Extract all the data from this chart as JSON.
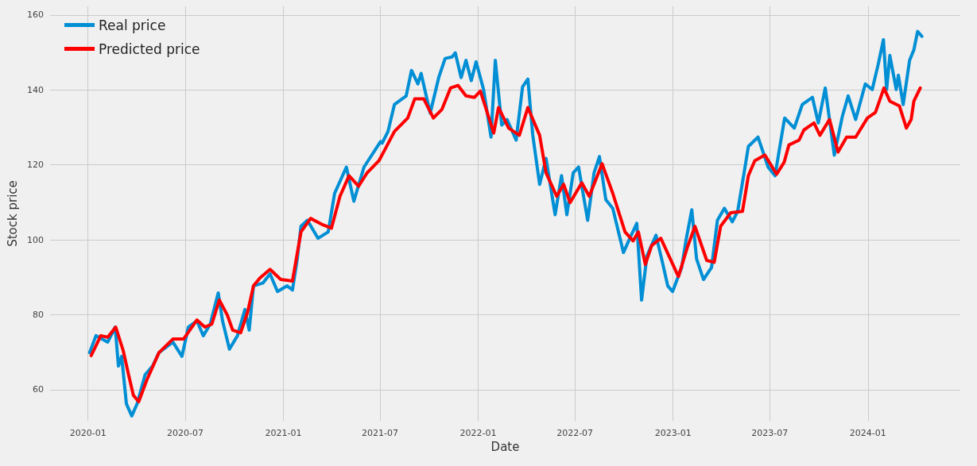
{
  "chart_data": {
    "type": "line",
    "xlabel": "Date",
    "ylabel": "Stock price",
    "xlim": [
      "2019-10-22",
      "2024-06-22"
    ],
    "ylim": [
      51.7,
      162.3
    ],
    "xticks": [
      "2020-01",
      "2020-07",
      "2021-01",
      "2021-07",
      "2022-01",
      "2022-07",
      "2023-01",
      "2023-07",
      "2024-01"
    ],
    "yticks": [
      60,
      80,
      100,
      120,
      140,
      160
    ],
    "grid": true,
    "legend": "top left",
    "marker": "none",
    "series": [
      {
        "name": "Real price",
        "color": "#008fd5",
        "x": [
          "2020-01-04",
          "2020-01-16",
          "2020-02-07",
          "2020-02-21",
          "2020-02-27",
          "2020-03-04",
          "2020-03-13",
          "2020-03-23",
          "2020-04-02",
          "2020-04-17",
          "2020-05-01",
          "2020-05-13",
          "2020-06-08",
          "2020-06-25",
          "2020-07-07",
          "2020-07-23",
          "2020-08-04",
          "2020-08-17",
          "2020-09-01",
          "2020-09-09",
          "2020-09-22",
          "2020-10-07",
          "2020-10-21",
          "2020-10-29",
          "2020-11-06",
          "2020-11-24",
          "2020-12-07",
          "2020-12-21",
          "2021-01-08",
          "2021-01-18",
          "2021-01-27",
          "2021-02-03",
          "2021-02-15",
          "2021-03-07",
          "2021-03-26",
          "2021-04-07",
          "2021-04-29",
          "2021-05-13",
          "2021-06-01",
          "2021-07-02",
          "2021-07-05",
          "2021-07-16",
          "2021-07-28",
          "2021-08-19",
          "2021-08-29",
          "2021-09-10",
          "2021-09-16",
          "2021-10-03",
          "2021-10-19",
          "2021-10-31",
          "2021-11-13",
          "2021-11-19",
          "2021-11-30",
          "2021-12-09",
          "2021-12-19",
          "2021-12-28",
          "2022-01-11",
          "2022-01-25",
          "2022-02-02",
          "2022-02-14",
          "2022-02-24",
          "2022-03-13",
          "2022-03-25",
          "2022-04-04",
          "2022-04-13",
          "2022-04-26",
          "2022-05-08",
          "2022-05-25",
          "2022-06-06",
          "2022-06-16",
          "2022-06-28",
          "2022-07-08",
          "2022-07-25",
          "2022-08-06",
          "2022-08-16",
          "2022-08-28",
          "2022-09-10",
          "2022-09-30",
          "2022-10-12",
          "2022-10-25",
          "2022-11-03",
          "2022-11-13",
          "2022-11-30",
          "2022-12-12",
          "2022-12-22",
          "2022-12-31",
          "2023-01-17",
          "2023-01-25",
          "2023-02-05",
          "2023-02-14",
          "2023-02-27",
          "2023-03-14",
          "2023-03-25",
          "2023-04-07",
          "2023-04-22",
          "2023-05-02",
          "2023-05-14",
          "2023-05-22",
          "2023-06-09",
          "2023-06-28",
          "2023-07-11",
          "2023-07-20",
          "2023-07-29",
          "2023-08-16",
          "2023-08-31",
          "2023-09-19",
          "2023-09-30",
          "2023-10-13",
          "2023-10-30",
          "2023-11-14",
          "2023-11-25",
          "2023-12-09",
          "2023-12-27",
          "2024-01-09",
          "2024-01-20",
          "2024-01-30",
          "2024-02-05",
          "2024-02-11",
          "2024-02-23",
          "2024-02-27",
          "2024-03-07",
          "2024-03-19",
          "2024-03-27",
          "2024-04-03",
          "2024-04-11"
        ],
        "values": [
          69.9,
          74.4,
          72.7,
          76.7,
          66.3,
          68.9,
          56.2,
          53.0,
          56.2,
          64.0,
          66.3,
          69.9,
          72.7,
          68.9,
          76.7,
          78.4,
          74.4,
          77.5,
          85.8,
          78.4,
          70.8,
          74.4,
          81.4,
          75.9,
          87.7,
          88.5,
          90.9,
          86.2,
          87.7,
          86.6,
          94.9,
          103.6,
          105.2,
          100.4,
          102.1,
          112.4,
          119.4,
          110.3,
          119.4,
          126.2,
          125.8,
          128.9,
          136.1,
          138.4,
          145.2,
          141.6,
          144.4,
          133.8,
          143.3,
          148.4,
          148.8,
          149.9,
          143.3,
          147.9,
          142.5,
          147.5,
          140.1,
          127.4,
          147.9,
          130.6,
          132.1,
          126.6,
          140.8,
          142.9,
          128.1,
          114.8,
          121.7,
          106.7,
          117.1,
          106.7,
          117.9,
          119.4,
          105.2,
          117.9,
          122.2,
          110.7,
          108.4,
          96.6,
          100.4,
          104.4,
          83.9,
          95.7,
          101.2,
          94.0,
          87.7,
          86.2,
          92.6,
          99.7,
          108.0,
          94.9,
          89.4,
          92.6,
          105.2,
          108.4,
          104.8,
          107.6,
          117.9,
          124.9,
          127.4,
          119.4,
          117.1,
          124.9,
          132.5,
          129.8,
          136.1,
          138.0,
          131.2,
          140.5,
          122.6,
          132.9,
          138.4,
          132.1,
          141.6,
          140.1,
          146.7,
          153.4,
          140.1,
          149.2,
          140.1,
          143.9,
          136.1,
          147.9,
          150.7,
          155.6,
          154.3
        ]
      },
      {
        "name": "Predicted price",
        "color": "#ff0000",
        "x": [
          "2020-01-07",
          "2020-01-25",
          "2020-02-07",
          "2020-02-22",
          "2020-03-07",
          "2020-03-17",
          "2020-03-26",
          "2020-04-05",
          "2020-04-20",
          "2020-05-13",
          "2020-06-08",
          "2020-06-28",
          "2020-07-23",
          "2020-08-07",
          "2020-08-20",
          "2020-09-03",
          "2020-09-18",
          "2020-09-28",
          "2020-10-13",
          "2020-10-26",
          "2020-11-06",
          "2020-11-18",
          "2020-12-07",
          "2020-12-27",
          "2021-01-18",
          "2021-02-03",
          "2021-02-21",
          "2021-03-16",
          "2021-04-01",
          "2021-04-17",
          "2021-05-04",
          "2021-05-22",
          "2021-06-07",
          "2021-06-29",
          "2021-07-11",
          "2021-07-28",
          "2021-08-22",
          "2021-09-04",
          "2021-09-21",
          "2021-10-09",
          "2021-10-25",
          "2021-11-10",
          "2021-11-24",
          "2021-12-09",
          "2021-12-25",
          "2022-01-05",
          "2022-01-14",
          "2022-01-30",
          "2022-02-08",
          "2022-02-27",
          "2022-03-19",
          "2022-04-04",
          "2022-04-26",
          "2022-05-08",
          "2022-05-28",
          "2022-06-10",
          "2022-06-22",
          "2022-07-14",
          "2022-07-28",
          "2022-08-21",
          "2022-09-10",
          "2022-10-03",
          "2022-10-18",
          "2022-10-28",
          "2022-11-10",
          "2022-11-22",
          "2022-12-09",
          "2023-01-11",
          "2023-01-28",
          "2023-02-11",
          "2023-03-05",
          "2023-03-19",
          "2023-03-31",
          "2023-04-19",
          "2023-05-11",
          "2023-05-22",
          "2023-06-03",
          "2023-06-22",
          "2023-07-14",
          "2023-07-28",
          "2023-08-06",
          "2023-08-25",
          "2023-09-03",
          "2023-09-22",
          "2023-10-03",
          "2023-10-21",
          "2023-11-06",
          "2023-11-22",
          "2023-12-09",
          "2023-12-31",
          "2024-01-15",
          "2024-01-31",
          "2024-02-11",
          "2024-02-29",
          "2024-03-13",
          "2024-03-22",
          "2024-03-27",
          "2024-04-08"
        ],
        "values": [
          69.1,
          74.4,
          74.0,
          76.7,
          70.4,
          64.0,
          58.5,
          56.8,
          62.5,
          69.9,
          73.5,
          73.5,
          78.6,
          76.7,
          77.5,
          83.9,
          79.9,
          75.9,
          75.2,
          80.7,
          87.7,
          89.8,
          92.1,
          89.4,
          89.0,
          102.1,
          105.7,
          104.0,
          103.1,
          111.6,
          117.1,
          114.3,
          117.9,
          121.1,
          124.3,
          128.9,
          132.5,
          137.6,
          137.6,
          132.5,
          134.8,
          140.5,
          141.2,
          138.4,
          138.0,
          139.7,
          135.7,
          128.5,
          135.3,
          129.8,
          127.9,
          135.3,
          127.9,
          117.9,
          111.6,
          114.8,
          109.9,
          115.2,
          111.6,
          120.3,
          112.4,
          102.1,
          99.7,
          102.1,
          93.4,
          98.5,
          100.4,
          90.2,
          98.1,
          103.6,
          94.5,
          94.0,
          103.6,
          107.2,
          107.6,
          117.1,
          121.1,
          122.6,
          117.5,
          120.7,
          125.3,
          126.6,
          129.3,
          131.2,
          127.9,
          132.1,
          123.4,
          127.4,
          127.4,
          132.5,
          134.0,
          140.5,
          137.0,
          135.7,
          129.8,
          132.1,
          137.0,
          140.5
        ]
      }
    ]
  }
}
